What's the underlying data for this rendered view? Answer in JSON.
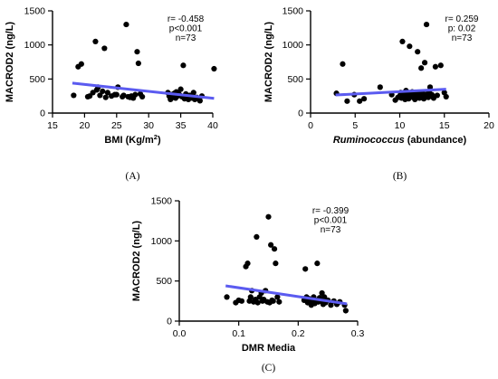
{
  "colors": {
    "points": "#000000",
    "trendline": "#5b5bf0"
  },
  "chart_data": [
    {
      "id": "A",
      "type": "scatter",
      "panel_label": "(A)",
      "ylabel": "MACROD2 (ng/L)",
      "xlabel_html": "BMI (Kg/m<tspan baseline-shift='super' font-size='7.5'>2</tspan>)",
      "xlabel": "BMI (Kg/m2)",
      "xlim": [
        15,
        40
      ],
      "ylim": [
        0,
        1500
      ],
      "xticks": [
        15,
        20,
        25,
        30,
        35,
        40
      ],
      "yticks": [
        0,
        500,
        1000,
        1500
      ],
      "stats": [
        "r= -0.458",
        "p<0.001",
        "n=73"
      ],
      "trend": {
        "x": [
          18.1,
          40.2
        ],
        "y": [
          440,
          215
        ]
      },
      "points": [
        [
          18.3,
          260
        ],
        [
          19.0,
          680
        ],
        [
          19.5,
          720
        ],
        [
          20.5,
          240
        ],
        [
          20.8,
          250
        ],
        [
          21.3,
          300
        ],
        [
          21.7,
          1050
        ],
        [
          21.9,
          340
        ],
        [
          22.1,
          380
        ],
        [
          22.4,
          260
        ],
        [
          22.8,
          320
        ],
        [
          23.1,
          950
        ],
        [
          23.3,
          230
        ],
        [
          23.6,
          300
        ],
        [
          24.2,
          250
        ],
        [
          24.7,
          270
        ],
        [
          25.0,
          270
        ],
        [
          25.2,
          380
        ],
        [
          25.9,
          240
        ],
        [
          26.1,
          260
        ],
        [
          26.5,
          1300
        ],
        [
          26.8,
          240
        ],
        [
          27.1,
          230
        ],
        [
          27.3,
          250
        ],
        [
          27.6,
          220
        ],
        [
          27.9,
          270
        ],
        [
          28.2,
          900
        ],
        [
          28.4,
          730
        ],
        [
          28.7,
          280
        ],
        [
          29.0,
          240
        ],
        [
          33.0,
          300
        ],
        [
          33.2,
          250
        ],
        [
          33.4,
          200
        ],
        [
          33.6,
          270
        ],
        [
          33.8,
          230
        ],
        [
          34.0,
          290
        ],
        [
          34.2,
          220
        ],
        [
          34.3,
          310
        ],
        [
          34.5,
          250
        ],
        [
          34.7,
          280
        ],
        [
          34.9,
          260
        ],
        [
          35.0,
          350
        ],
        [
          35.2,
          240
        ],
        [
          35.4,
          700
        ],
        [
          35.6,
          210
        ],
        [
          35.8,
          280
        ],
        [
          36.0,
          230
        ],
        [
          36.2,
          200
        ],
        [
          36.4,
          260
        ],
        [
          36.6,
          240
        ],
        [
          36.8,
          220
        ],
        [
          37.0,
          300
        ],
        [
          37.2,
          200
        ],
        [
          37.5,
          230
        ],
        [
          37.8,
          210
        ],
        [
          38.0,
          180
        ],
        [
          38.3,
          250
        ],
        [
          40.2,
          650
        ]
      ]
    },
    {
      "id": "B",
      "type": "scatter",
      "panel_label": "(B)",
      "ylabel": "MACROD2 (ng/L)",
      "xlabel_html": "<tspan font-style='italic'>Ruminococcus</tspan> (abundance)",
      "xlabel": "Ruminococcus (abundance)",
      "xlim": [
        0,
        20
      ],
      "ylim": [
        0,
        1500
      ],
      "xticks": [
        0,
        5,
        10,
        15,
        20
      ],
      "yticks": [
        0,
        500,
        1000,
        1500
      ],
      "stats": [
        "r= 0.259",
        "p: 0.02",
        "n=73"
      ],
      "trend": {
        "x": [
          2.8,
          15.2
        ],
        "y": [
          265,
          350
        ]
      },
      "points": [
        [
          2.9,
          290
        ],
        [
          3.6,
          720
        ],
        [
          4.1,
          175
        ],
        [
          4.9,
          270
        ],
        [
          5.5,
          175
        ],
        [
          6.0,
          210
        ],
        [
          7.8,
          380
        ],
        [
          9.1,
          270
        ],
        [
          9.5,
          190
        ],
        [
          9.8,
          230
        ],
        [
          10.0,
          250
        ],
        [
          10.1,
          300
        ],
        [
          10.2,
          220
        ],
        [
          10.3,
          1050
        ],
        [
          10.4,
          280
        ],
        [
          10.5,
          260
        ],
        [
          10.6,
          200
        ],
        [
          10.7,
          330
        ],
        [
          10.8,
          240
        ],
        [
          10.9,
          290
        ],
        [
          11.0,
          210
        ],
        [
          11.1,
          980
        ],
        [
          11.2,
          270
        ],
        [
          11.3,
          250
        ],
        [
          11.4,
          310
        ],
        [
          11.5,
          230
        ],
        [
          11.6,
          280
        ],
        [
          11.7,
          200
        ],
        [
          11.8,
          260
        ],
        [
          11.9,
          240
        ],
        [
          12.0,
          900
        ],
        [
          12.1,
          300
        ],
        [
          12.2,
          220
        ],
        [
          12.3,
          270
        ],
        [
          12.4,
          660
        ],
        [
          12.5,
          250
        ],
        [
          12.6,
          290
        ],
        [
          12.7,
          210
        ],
        [
          12.8,
          740
        ],
        [
          12.9,
          240
        ],
        [
          13.0,
          1300
        ],
        [
          13.1,
          280
        ],
        [
          13.2,
          230
        ],
        [
          13.3,
          300
        ],
        [
          13.4,
          380
        ],
        [
          13.5,
          250
        ],
        [
          13.6,
          270
        ],
        [
          13.8,
          220
        ],
        [
          14.0,
          680
        ],
        [
          14.2,
          260
        ],
        [
          14.6,
          700
        ],
        [
          15.0,
          300
        ],
        [
          15.2,
          240
        ]
      ]
    },
    {
      "id": "C",
      "type": "scatter",
      "panel_label": "(C)",
      "ylabel": "MACROD2 (ng/L)",
      "xlabel_html": "DMR Media",
      "xlabel": "DMR Media",
      "xlim": [
        0.0,
        0.3
      ],
      "ylim": [
        0,
        1500
      ],
      "xticks": [
        0.0,
        0.1,
        0.2,
        0.3
      ],
      "xtick_labels": [
        "0.0",
        "0.1",
        "0.2",
        "0.3"
      ],
      "yticks": [
        0,
        500,
        1000,
        1500
      ],
      "stats": [
        "r= -0.399",
        "p<0.001",
        "n=73"
      ],
      "trend": {
        "x": [
          0.078,
          0.282
        ],
        "y": [
          440,
          215
        ]
      },
      "points": [
        [
          0.08,
          300
        ],
        [
          0.095,
          230
        ],
        [
          0.1,
          260
        ],
        [
          0.105,
          250
        ],
        [
          0.112,
          680
        ],
        [
          0.115,
          720
        ],
        [
          0.118,
          250
        ],
        [
          0.12,
          300
        ],
        [
          0.122,
          380
        ],
        [
          0.125,
          240
        ],
        [
          0.128,
          270
        ],
        [
          0.13,
          1050
        ],
        [
          0.132,
          230
        ],
        [
          0.135,
          300
        ],
        [
          0.138,
          350
        ],
        [
          0.14,
          250
        ],
        [
          0.142,
          270
        ],
        [
          0.145,
          380
        ],
        [
          0.148,
          240
        ],
        [
          0.15,
          1300
        ],
        [
          0.152,
          230
        ],
        [
          0.154,
          950
        ],
        [
          0.156,
          260
        ],
        [
          0.158,
          250
        ],
        [
          0.16,
          900
        ],
        [
          0.162,
          720
        ],
        [
          0.165,
          300
        ],
        [
          0.168,
          240
        ],
        [
          0.21,
          260
        ],
        [
          0.212,
          650
        ],
        [
          0.214,
          300
        ],
        [
          0.216,
          230
        ],
        [
          0.218,
          280
        ],
        [
          0.22,
          250
        ],
        [
          0.222,
          200
        ],
        [
          0.224,
          270
        ],
        [
          0.226,
          300
        ],
        [
          0.228,
          220
        ],
        [
          0.23,
          260
        ],
        [
          0.232,
          720
        ],
        [
          0.234,
          240
        ],
        [
          0.236,
          290
        ],
        [
          0.238,
          250
        ],
        [
          0.24,
          350
        ],
        [
          0.242,
          210
        ],
        [
          0.244,
          300
        ],
        [
          0.246,
          230
        ],
        [
          0.25,
          260
        ],
        [
          0.255,
          200
        ],
        [
          0.26,
          250
        ],
        [
          0.265,
          210
        ],
        [
          0.27,
          240
        ],
        [
          0.278,
          200
        ],
        [
          0.28,
          130
        ]
      ]
    }
  ]
}
